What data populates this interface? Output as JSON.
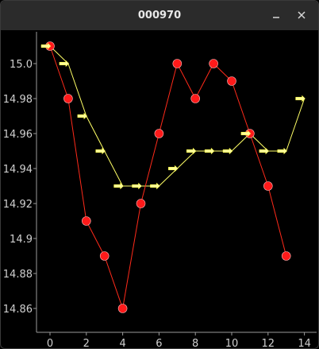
{
  "window": {
    "title": "000970",
    "minimize_glyph": "–",
    "close_glyph": "✕"
  },
  "colors": {
    "background": "#000000",
    "axis": "#9a9a9a",
    "price_line": "#ff2a1a",
    "price_marker": "#ff1a1a",
    "signal_line": "#ffff66",
    "signal_marker": "#ffff99"
  },
  "icons": {
    "price_marker": "circle",
    "signal_marker": "right-arrow"
  },
  "chart_data": {
    "type": "line",
    "title": "",
    "xlabel": "",
    "ylabel": "",
    "xlim": [
      -0.8,
      14.4
    ],
    "ylim": [
      14.853,
      15.02
    ],
    "grid": false,
    "legend": "none",
    "x_ticks": [
      0,
      2,
      4,
      6,
      8,
      10,
      12,
      14
    ],
    "y_ticks": [
      14.86,
      14.88,
      14.9,
      14.92,
      14.94,
      14.96,
      14.98,
      15.0
    ],
    "y_tick_labels": [
      "14.86",
      "14.88",
      "14.9",
      "14.92",
      "14.94",
      "14.96",
      "14.98",
      "15.0"
    ],
    "series": [
      {
        "marker": "circle",
        "x": [
          0,
          1,
          2,
          3,
          4,
          5,
          6,
          7,
          8,
          9,
          10,
          11,
          12,
          13
        ],
        "values": [
          15.01,
          14.98,
          14.91,
          14.89,
          14.86,
          14.92,
          14.96,
          15.0,
          14.98,
          15.0,
          14.99,
          14.96,
          14.93,
          14.89
        ]
      },
      {
        "marker": "right-arrow",
        "x": [
          0,
          1,
          2,
          3,
          4,
          5,
          6,
          7,
          8,
          9,
          10,
          11,
          12,
          13,
          14
        ],
        "values": [
          15.01,
          15.0,
          14.97,
          14.95,
          14.93,
          14.93,
          14.93,
          14.94,
          14.95,
          14.95,
          14.95,
          14.96,
          14.95,
          14.95,
          14.98
        ]
      }
    ]
  }
}
